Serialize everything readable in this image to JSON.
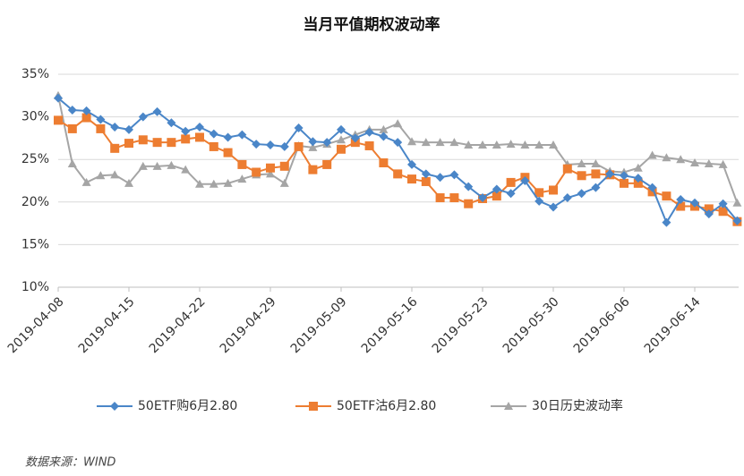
{
  "chart_data": {
    "type": "line",
    "title": "当月平值期权波动率",
    "source": "数据来源：WIND",
    "categories": [
      "2019-04-08",
      null,
      null,
      null,
      null,
      "2019-04-15",
      null,
      null,
      null,
      null,
      "2019-04-22",
      null,
      null,
      null,
      null,
      "2019-04-29",
      null,
      null,
      null,
      null,
      "2019-05-09",
      null,
      null,
      null,
      null,
      "2019-05-16",
      null,
      null,
      null,
      null,
      "2019-05-23",
      null,
      null,
      null,
      null,
      "2019-05-30",
      null,
      null,
      null,
      null,
      "2019-06-06",
      null,
      null,
      null,
      null,
      "2019-06-14",
      null,
      null,
      null
    ],
    "ylim": [
      10,
      35
    ],
    "yticks": [
      {
        "value": 10,
        "label": "10%"
      },
      {
        "value": 15,
        "label": "15%"
      },
      {
        "value": 20,
        "label": "20%"
      },
      {
        "value": 25,
        "label": "25%"
      },
      {
        "value": 30,
        "label": "30%"
      },
      {
        "value": 35,
        "label": "35%"
      }
    ],
    "grid": true,
    "legend": "bottom",
    "series": [
      {
        "name": "50ETF购6月2.80",
        "color": "#4a86c8",
        "marker": "diamond",
        "values": [
          32.2,
          30.8,
          30.7,
          29.7,
          28.8,
          28.5,
          30.0,
          30.6,
          29.3,
          28.3,
          28.8,
          28.0,
          27.6,
          27.9,
          26.8,
          26.7,
          26.5,
          28.7,
          27.1,
          27.0,
          28.5,
          27.5,
          28.2,
          27.7,
          27.0,
          24.4,
          23.3,
          22.9,
          23.2,
          21.8,
          20.5,
          21.5,
          21.0,
          22.5,
          20.1,
          19.4,
          20.5,
          21.0,
          21.7,
          23.3,
          23.1,
          22.8,
          21.7,
          17.6,
          20.3,
          19.9,
          18.6,
          19.8,
          17.8
        ]
      },
      {
        "name": "50ETF沽6月2.80",
        "color": "#ed7d31",
        "marker": "square",
        "values": [
          29.6,
          28.6,
          29.9,
          28.6,
          26.3,
          26.9,
          27.3,
          27.0,
          27.0,
          27.4,
          27.6,
          26.5,
          25.8,
          24.4,
          23.5,
          24.0,
          24.2,
          26.5,
          23.8,
          24.4,
          26.2,
          27.0,
          26.6,
          24.6,
          23.3,
          22.7,
          22.4,
          20.5,
          20.5,
          19.8,
          20.4,
          20.7,
          22.3,
          22.9,
          21.1,
          21.4,
          23.9,
          23.1,
          23.3,
          23.2,
          22.2,
          22.2,
          21.2,
          20.7,
          19.5,
          19.5,
          19.2,
          18.9,
          17.7
        ]
      },
      {
        "name": "30日历史波动率",
        "color": "#a5a5a5",
        "marker": "triangle",
        "values": [
          32.5,
          24.5,
          22.3,
          23.1,
          23.2,
          22.2,
          24.2,
          24.2,
          24.3,
          23.8,
          22.1,
          22.1,
          22.2,
          22.7,
          23.2,
          23.3,
          22.2,
          26.6,
          26.4,
          26.8,
          27.3,
          27.9,
          28.5,
          28.5,
          29.2,
          27.1,
          27.0,
          27.0,
          27.0,
          26.7,
          26.7,
          26.7,
          26.8,
          26.7,
          26.7,
          26.7,
          24.4,
          24.5,
          24.5,
          23.6,
          23.5,
          24.0,
          25.5,
          25.2,
          25.0,
          24.6,
          24.5,
          24.4,
          19.9
        ]
      }
    ]
  }
}
